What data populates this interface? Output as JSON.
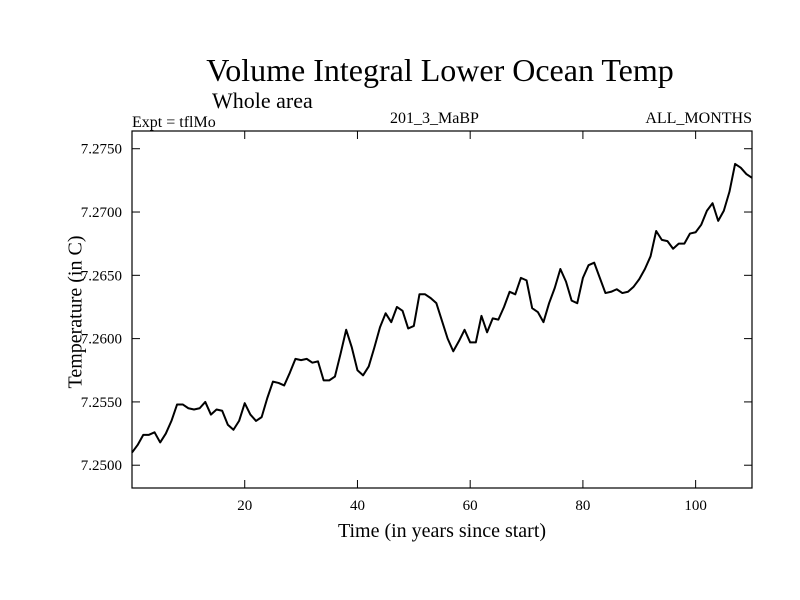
{
  "chart_data": {
    "type": "line",
    "title": "Volume Integral Lower Ocean Temp",
    "subtitle": "Whole area",
    "experiment": "Expt = tflMo",
    "run": "201_3_MaBP",
    "months": "ALL_MONTHS",
    "xlabel": "Time (in years since start)",
    "ylabel": "Temperature (in C)",
    "xlim": [
      0,
      110
    ],
    "ylim": [
      7.2482,
      7.2764
    ],
    "xticks": [
      20,
      40,
      60,
      80,
      100
    ],
    "yticks": [
      7.25,
      7.255,
      7.26,
      7.265,
      7.27,
      7.275
    ],
    "ytick_labels": [
      "7.2500",
      "7.2550",
      "7.2600",
      "7.2650",
      "7.2700",
      "7.2750"
    ],
    "series": [
      {
        "name": "Volume Integral Lower Ocean Temp",
        "x": [
          0,
          1,
          2,
          3,
          4,
          5,
          6,
          7,
          8,
          9,
          10,
          11,
          12,
          13,
          14,
          15,
          16,
          17,
          18,
          19,
          20,
          21,
          22,
          23,
          24,
          25,
          26,
          27,
          28,
          29,
          30,
          31,
          32,
          33,
          34,
          35,
          36,
          37,
          38,
          39,
          40,
          41,
          42,
          43,
          44,
          45,
          46,
          47,
          48,
          49,
          50,
          51,
          52,
          53,
          54,
          55,
          56,
          57,
          58,
          59,
          60,
          61,
          62,
          63,
          64,
          65,
          66,
          67,
          68,
          69,
          70,
          71,
          72,
          73,
          74,
          75,
          76,
          77,
          78,
          79,
          80,
          81,
          82,
          83,
          84,
          85,
          86,
          87,
          88,
          89,
          90,
          91,
          92,
          93,
          94,
          95,
          96,
          97,
          98,
          99,
          100,
          101,
          102,
          103,
          104,
          105,
          106,
          107,
          108,
          109,
          110
        ],
        "y": [
          7.251,
          7.2516,
          7.2524,
          7.2524,
          7.2526,
          7.2518,
          7.2525,
          7.2535,
          7.2548,
          7.2548,
          7.2545,
          7.2544,
          7.2545,
          7.255,
          7.254,
          7.2544,
          7.2543,
          7.2532,
          7.2528,
          7.2535,
          7.2549,
          7.254,
          7.2535,
          7.2538,
          7.2553,
          7.2566,
          7.2565,
          7.2563,
          7.2573,
          7.2584,
          7.2583,
          7.2584,
          7.2581,
          7.2582,
          7.2567,
          7.2567,
          7.257,
          7.2588,
          7.2607,
          7.2593,
          7.2575,
          7.2571,
          7.2578,
          7.2593,
          7.2609,
          7.262,
          7.2613,
          7.2625,
          7.2622,
          7.2608,
          7.261,
          7.2635,
          7.2635,
          7.2632,
          7.2628,
          7.2614,
          7.26,
          7.259,
          7.2598,
          7.2607,
          7.2597,
          7.2597,
          7.2618,
          7.2605,
          7.2616,
          7.2615,
          7.2625,
          7.2637,
          7.2635,
          7.2648,
          7.2646,
          7.2624,
          7.2621,
          7.2613,
          7.2628,
          7.264,
          7.2655,
          7.2645,
          7.263,
          7.2628,
          7.2648,
          7.2658,
          7.266,
          7.2648,
          7.2636,
          7.2637,
          7.2639,
          7.2636,
          7.2637,
          7.2641,
          7.2647,
          7.2655,
          7.2665,
          7.2685,
          7.2678,
          7.2677,
          7.2671,
          7.2675,
          7.2675,
          7.2683,
          7.2684,
          7.269,
          7.2701,
          7.2707,
          7.2693,
          7.2701,
          7.2716,
          7.2738,
          7.2735,
          7.273,
          7.2727
        ]
      }
    ],
    "grid": false,
    "legend": "none"
  }
}
